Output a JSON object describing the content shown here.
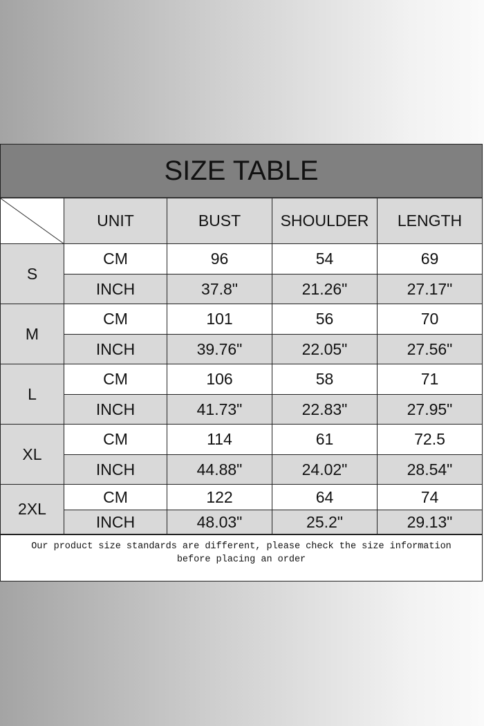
{
  "title": "SIZE TABLE",
  "headers": [
    "UNIT",
    "BUST",
    "SHOULDER",
    "LENGTH"
  ],
  "sizes": [
    {
      "size": "S",
      "rows": [
        [
          "CM",
          "96",
          "54",
          "69"
        ],
        [
          "INCH",
          "37.8\"",
          "21.26\"",
          "27.17\""
        ]
      ]
    },
    {
      "size": "M",
      "rows": [
        [
          "CM",
          "101",
          "56",
          "70"
        ],
        [
          "INCH",
          "39.76\"",
          "22.05\"",
          "27.56\""
        ]
      ]
    },
    {
      "size": "L",
      "rows": [
        [
          "CM",
          "106",
          "58",
          "71"
        ],
        [
          "INCH",
          "41.73\"",
          "22.83\"",
          "27.95\""
        ]
      ]
    },
    {
      "size": "XL",
      "rows": [
        [
          "CM",
          "114",
          "61",
          "72.5"
        ],
        [
          "INCH",
          "44.88\"",
          "24.02\"",
          "28.54\""
        ]
      ]
    },
    {
      "size": "2XL",
      "rows": [
        [
          "CM",
          "122",
          "64",
          "74"
        ],
        [
          "INCH",
          "48.03\"",
          "25.2\"",
          "29.13\""
        ]
      ]
    }
  ],
  "footer": {
    "line1": "Our product size standards are different, please check the size information",
    "line2": "before placing an order"
  },
  "colors": {
    "title_band": "#808080",
    "shaded_cell": "#d9d9d9"
  }
}
